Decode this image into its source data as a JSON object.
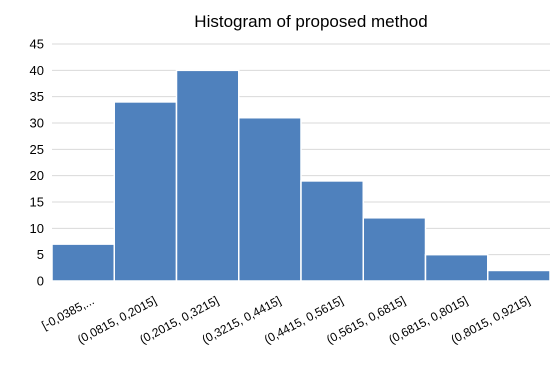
{
  "chart_data": {
    "type": "bar",
    "title": "Histogram of proposed method",
    "xlabel": "",
    "ylabel": "",
    "categories": [
      "[-0,0385,...",
      "(0,0815, 0,2015]",
      "(0,2015, 0,3215]",
      "(0,3215, 0,4415]",
      "(0,4415, 0,5615]",
      "(0,5615, 0,6815]",
      "(0,6815, 0,8015]",
      "(0,8015, 0,9215]"
    ],
    "values": [
      7,
      34,
      40,
      31,
      19,
      12,
      5,
      2
    ],
    "ylim": [
      0,
      45
    ],
    "yticks": [
      "0",
      "5",
      "10",
      "15",
      "20",
      "25",
      "30",
      "35",
      "40",
      "45"
    ],
    "grid": true,
    "legend": "none",
    "bar_color": "#4f81bd"
  }
}
